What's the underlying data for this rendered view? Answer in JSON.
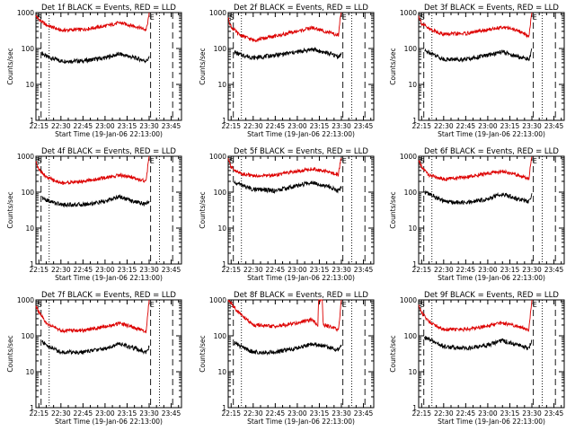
{
  "colors": {
    "events": "#000000",
    "lld": "#dd0000",
    "axis": "#000000",
    "background": "#ffffff"
  },
  "chart_data": [
    {
      "type": "line",
      "title": "Det 1f BLACK = Events, RED = LLD",
      "xlabel": "Start Time (19-Jan-06 22:13:00)",
      "ylabel": "Counts/sec",
      "yscale": "log",
      "ylim": [
        1,
        1000
      ],
      "yticks": [
        "1",
        "10",
        "100",
        "1000"
      ],
      "xticks": [
        "22:15",
        "22:30",
        "22:45",
        "23:00",
        "23:15",
        "23:30",
        "23:45"
      ],
      "xlim_min": [
        13,
        112
      ],
      "markers": [
        {
          "label": "S",
          "min": 15.5
        },
        {
          "label": "E",
          "min": 92
        }
      ],
      "series": [
        {
          "name": "Events",
          "x": [
            17,
            20,
            30,
            45,
            60,
            70,
            80,
            88,
            90
          ],
          "y": [
            75,
            60,
            45,
            45,
            55,
            70,
            55,
            45,
            55
          ]
        },
        {
          "name": "LLD",
          "x": [
            13,
            15,
            20,
            30,
            45,
            60,
            70,
            80,
            88,
            89,
            90
          ],
          "y": [
            800,
            650,
            450,
            320,
            340,
            420,
            520,
            420,
            330,
            500,
            1000
          ]
        }
      ]
    },
    {
      "type": "line",
      "title": "Det 2f BLACK = Events, RED = LLD",
      "xlabel": "Start Time (19-Jan-06 22:13:00)",
      "ylabel": "Counts/sec",
      "yscale": "log",
      "ylim": [
        1,
        1000
      ],
      "yticks": [
        "1",
        "10",
        "100",
        "1000"
      ],
      "xticks": [
        "22:15",
        "22:30",
        "22:45",
        "23:00",
        "23:15",
        "23:30",
        "23:45"
      ],
      "xlim_min": [
        13,
        112
      ],
      "markers": [
        {
          "label": "S",
          "min": 15.5
        },
        {
          "label": "E",
          "min": 92
        }
      ],
      "series": [
        {
          "name": "Events",
          "x": [
            17,
            20,
            30,
            45,
            60,
            70,
            80,
            88,
            90
          ],
          "y": [
            80,
            70,
            55,
            65,
            80,
            95,
            75,
            60,
            70
          ]
        },
        {
          "name": "LLD",
          "x": [
            13,
            15,
            20,
            30,
            45,
            60,
            70,
            80,
            88,
            89,
            90
          ],
          "y": [
            700,
            400,
            250,
            170,
            220,
            300,
            380,
            290,
            230,
            600,
            1000
          ]
        }
      ]
    },
    {
      "type": "line",
      "title": "Det 3f BLACK = Events, RED = LLD",
      "xlabel": "Start Time (19-Jan-06 22:13:00)",
      "ylabel": "Counts/sec",
      "yscale": "log",
      "ylim": [
        1,
        1000
      ],
      "yticks": [
        "1",
        "10",
        "100",
        "1000"
      ],
      "xticks": [
        "22:15",
        "22:30",
        "22:45",
        "23:00",
        "23:15",
        "23:30",
        "23:45"
      ],
      "xlim_min": [
        13,
        112
      ],
      "markers": [
        {
          "label": "S",
          "min": 15.5
        },
        {
          "label": "E",
          "min": 92
        }
      ],
      "series": [
        {
          "name": "Events",
          "x": [
            17,
            20,
            30,
            45,
            60,
            70,
            80,
            88,
            90
          ],
          "y": [
            85,
            80,
            50,
            50,
            65,
            80,
            60,
            50,
            90
          ]
        },
        {
          "name": "LLD",
          "x": [
            13,
            15,
            20,
            30,
            45,
            60,
            70,
            80,
            88,
            89,
            90
          ],
          "y": [
            800,
            500,
            350,
            250,
            260,
            330,
            400,
            320,
            220,
            500,
            1000
          ]
        }
      ]
    },
    {
      "type": "line",
      "title": "Det 4f BLACK = Events, RED = LLD",
      "xlabel": "Start Time (19-Jan-06 22:13:00)",
      "ylabel": "Counts/sec",
      "yscale": "log",
      "ylim": [
        1,
        1000
      ],
      "yticks": [
        "1",
        "10",
        "100",
        "1000"
      ],
      "xticks": [
        "22:15",
        "22:30",
        "22:45",
        "23:00",
        "23:15",
        "23:30",
        "23:45"
      ],
      "xlim_min": [
        13,
        112
      ],
      "markers": [
        {
          "label": "S",
          "min": 15.5
        },
        {
          "label": "E",
          "min": 92
        }
      ],
      "series": [
        {
          "name": "Events",
          "x": [
            17,
            20,
            30,
            45,
            60,
            70,
            80,
            88,
            90
          ],
          "y": [
            70,
            60,
            45,
            45,
            55,
            75,
            55,
            45,
            60
          ]
        },
        {
          "name": "LLD",
          "x": [
            13,
            15,
            20,
            30,
            45,
            60,
            70,
            80,
            88,
            89,
            90
          ],
          "y": [
            700,
            450,
            260,
            180,
            200,
            250,
            300,
            250,
            200,
            500,
            1000
          ]
        }
      ]
    },
    {
      "type": "line",
      "title": "Det 5f BLACK = Events, RED = LLD",
      "xlabel": "Start Time (19-Jan-06 22:13:00)",
      "ylabel": "Counts/sec",
      "yscale": "log",
      "ylim": [
        1,
        1000
      ],
      "yticks": [
        "1",
        "10",
        "100",
        "1000"
      ],
      "xticks": [
        "22:15",
        "22:30",
        "22:45",
        "23:00",
        "23:15",
        "23:30",
        "23:45"
      ],
      "xlim_min": [
        13,
        112
      ],
      "markers": [
        {
          "label": "S",
          "min": 15.5
        },
        {
          "label": "E",
          "min": 92
        }
      ],
      "series": [
        {
          "name": "Events",
          "x": [
            17,
            20,
            30,
            45,
            60,
            70,
            80,
            88,
            90
          ],
          "y": [
            180,
            170,
            120,
            110,
            150,
            190,
            150,
            110,
            140
          ]
        },
        {
          "name": "LLD",
          "x": [
            13,
            15,
            20,
            30,
            45,
            60,
            70,
            80,
            88,
            89,
            90
          ],
          "y": [
            800,
            500,
            350,
            280,
            300,
            380,
            450,
            380,
            300,
            600,
            1000
          ]
        }
      ]
    },
    {
      "type": "line",
      "title": "Det 6f BLACK = Events, RED = LLD",
      "xlabel": "Start Time (19-Jan-06 22:13:00)",
      "ylabel": "Counts/sec",
      "yscale": "log",
      "ylim": [
        1,
        1000
      ],
      "yticks": [
        "1",
        "10",
        "100",
        "1000"
      ],
      "xticks": [
        "22:15",
        "22:30",
        "22:45",
        "23:00",
        "23:15",
        "23:30",
        "23:45"
      ],
      "xlim_min": [
        13,
        112
      ],
      "markers": [
        {
          "label": "S",
          "min": 15.5
        },
        {
          "label": "E",
          "min": 92
        }
      ],
      "series": [
        {
          "name": "Events",
          "x": [
            17,
            20,
            30,
            45,
            60,
            70,
            80,
            88,
            90
          ],
          "y": [
            100,
            90,
            55,
            50,
            65,
            90,
            65,
            55,
            90
          ]
        },
        {
          "name": "LLD",
          "x": [
            13,
            15,
            20,
            30,
            45,
            60,
            70,
            80,
            88,
            89,
            90
          ],
          "y": [
            750,
            500,
            300,
            230,
            260,
            330,
            380,
            300,
            240,
            550,
            1000
          ]
        }
      ]
    },
    {
      "type": "line",
      "title": "Det 7f BLACK = Events, RED = LLD",
      "xlabel": "Start Time (19-Jan-06 22:13:00)",
      "ylabel": "Counts/sec",
      "yscale": "log",
      "ylim": [
        1,
        1000
      ],
      "yticks": [
        "1",
        "10",
        "100",
        "1000"
      ],
      "xticks": [
        "22:15",
        "22:30",
        "22:45",
        "23:00",
        "23:15",
        "23:30",
        "23:45"
      ],
      "xlim_min": [
        13,
        112
      ],
      "markers": [
        {
          "label": "S",
          "min": 15.5
        },
        {
          "label": "E",
          "min": 92
        }
      ],
      "series": [
        {
          "name": "Events",
          "x": [
            17,
            20,
            30,
            45,
            60,
            70,
            80,
            88,
            90
          ],
          "y": [
            70,
            55,
            35,
            35,
            45,
            60,
            45,
            35,
            50
          ]
        },
        {
          "name": "LLD",
          "x": [
            13,
            15,
            20,
            30,
            45,
            60,
            70,
            80,
            88,
            89,
            90
          ],
          "y": [
            700,
            450,
            220,
            140,
            140,
            180,
            220,
            170,
            130,
            400,
            1000
          ]
        }
      ]
    },
    {
      "type": "line",
      "title": "Det 8f BLACK = Events, RED = LLD",
      "xlabel": "Start Time (19-Jan-06 22:13:00)",
      "ylabel": "Counts/sec",
      "yscale": "log",
      "ylim": [
        1,
        1000
      ],
      "yticks": [
        "1",
        "10",
        "100",
        "1000"
      ],
      "xticks": [
        "22:15",
        "22:30",
        "22:45",
        "23:00",
        "23:15",
        "23:30",
        "23:45"
      ],
      "xlim_min": [
        13,
        112
      ],
      "markers": [
        {
          "label": "S",
          "min": 15.5
        },
        {
          "label": "E",
          "min": 92
        }
      ],
      "series": [
        {
          "name": "Events",
          "x": [
            17,
            20,
            30,
            45,
            60,
            70,
            75,
            76,
            80,
            88,
            90
          ],
          "y": [
            65,
            55,
            35,
            35,
            45,
            60,
            55,
            55,
            50,
            40,
            55
          ]
        },
        {
          "name": "LLD",
          "x": [
            13,
            15,
            20,
            30,
            45,
            60,
            70,
            74,
            74.5,
            75,
            77,
            77.5,
            78,
            88,
            89,
            90
          ],
          "y": [
            1000,
            800,
            450,
            200,
            180,
            230,
            280,
            200,
            1000,
            1000,
            1000,
            250,
            200,
            150,
            400,
            1000
          ]
        }
      ]
    },
    {
      "type": "line",
      "title": "Det 9f BLACK = Events, RED = LLD",
      "xlabel": "Start Time (19-Jan-06 22:13:00)",
      "ylabel": "Counts/sec",
      "yscale": "log",
      "ylim": [
        1,
        1000
      ],
      "yticks": [
        "1",
        "10",
        "100",
        "1000"
      ],
      "xticks": [
        "22:15",
        "22:30",
        "22:45",
        "23:00",
        "23:15",
        "23:30",
        "23:45"
      ],
      "xlim_min": [
        13,
        112
      ],
      "markers": [
        {
          "label": "S",
          "min": 15.5
        },
        {
          "label": "E",
          "min": 92
        }
      ],
      "series": [
        {
          "name": "Events",
          "x": [
            17,
            20,
            30,
            45,
            60,
            70,
            80,
            88,
            90
          ],
          "y": [
            90,
            80,
            50,
            45,
            55,
            75,
            55,
            45,
            80
          ]
        },
        {
          "name": "LLD",
          "x": [
            13,
            15,
            20,
            30,
            45,
            60,
            70,
            80,
            88,
            89,
            90
          ],
          "y": [
            700,
            450,
            250,
            150,
            150,
            190,
            230,
            180,
            150,
            450,
            1000
          ]
        }
      ]
    }
  ]
}
